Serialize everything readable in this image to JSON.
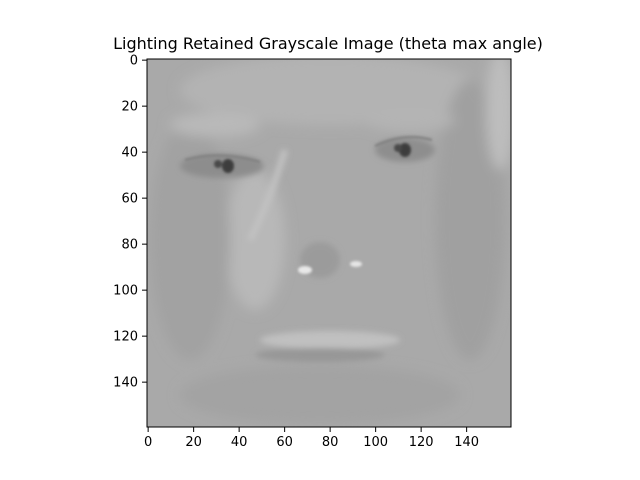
{
  "chart_data": {
    "type": "heatmap",
    "title": "Lighting Retained Grayscale Image (theta max angle)",
    "xlabel": "",
    "ylabel": "",
    "image_shape": [
      160,
      160
    ],
    "colormap": "gray",
    "xlim": [
      -0.5,
      159.5
    ],
    "ylim": [
      159.5,
      -0.5
    ],
    "x_ticks": [
      0,
      20,
      40,
      60,
      80,
      100,
      120,
      140
    ],
    "y_ticks": [
      0,
      20,
      40,
      60,
      80,
      100,
      120,
      140
    ],
    "grid": false,
    "background_gray": 0.66
  }
}
